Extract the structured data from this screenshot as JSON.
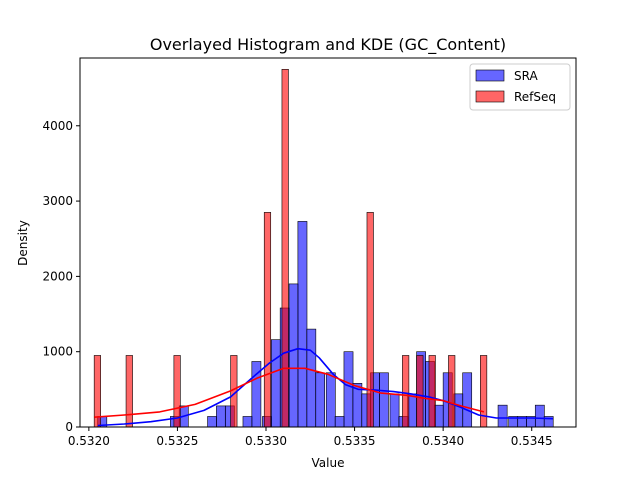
{
  "chart_data": {
    "type": "histogram",
    "title": "Overlayed Histogram and KDE (GC_Content)",
    "xlabel": "Value",
    "ylabel": "Density",
    "xlim": [
      0.53195,
      0.53475
    ],
    "ylim": [
      0,
      4900
    ],
    "xticks": [
      {
        "value": 0.532,
        "label": "0.5320"
      },
      {
        "value": 0.5325,
        "label": "0.5325"
      },
      {
        "value": 0.533,
        "label": "0.5330"
      },
      {
        "value": 0.5335,
        "label": "0.5335"
      },
      {
        "value": 0.534,
        "label": "0.5340"
      },
      {
        "value": 0.5345,
        "label": "0.5345"
      }
    ],
    "yticks": [
      {
        "value": 0,
        "label": "0"
      },
      {
        "value": 1000,
        "label": "1000"
      },
      {
        "value": 2000,
        "label": "2000"
      },
      {
        "value": 3000,
        "label": "3000"
      },
      {
        "value": 4000,
        "label": "4000"
      }
    ],
    "legend": {
      "placement": "top-right"
    },
    "series": [
      {
        "name": "SRA",
        "color": "#0000ff",
        "bar_fill": "rgba(0,0,255,0.6)",
        "bin_width": 5.14e-05,
        "bins": [
          {
            "x0": 0.53205,
            "h": 140
          },
          {
            "x0": 0.53246,
            "h": 140
          },
          {
            "x0": 0.53251,
            "h": 280
          },
          {
            "x0": 0.53267,
            "h": 140
          },
          {
            "x0": 0.53272,
            "h": 280
          },
          {
            "x0": 0.53277,
            "h": 280
          },
          {
            "x0": 0.53287,
            "h": 140
          },
          {
            "x0": 0.53292,
            "h": 870
          },
          {
            "x0": 0.53298,
            "h": 140
          },
          {
            "x0": 0.53303,
            "h": 1160
          },
          {
            "x0": 0.53308,
            "h": 1580
          },
          {
            "x0": 0.53313,
            "h": 1900
          },
          {
            "x0": 0.53318,
            "h": 2730
          },
          {
            "x0": 0.53323,
            "h": 1300
          },
          {
            "x0": 0.53328,
            "h": 720
          },
          {
            "x0": 0.53334,
            "h": 720
          },
          {
            "x0": 0.53339,
            "h": 140
          },
          {
            "x0": 0.53344,
            "h": 1000
          },
          {
            "x0": 0.53349,
            "h": 580
          },
          {
            "x0": 0.53354,
            "h": 440
          },
          {
            "x0": 0.53359,
            "h": 720
          },
          {
            "x0": 0.53364,
            "h": 720
          },
          {
            "x0": 0.5337,
            "h": 440
          },
          {
            "x0": 0.53375,
            "h": 140
          },
          {
            "x0": 0.5338,
            "h": 440
          },
          {
            "x0": 0.53385,
            "h": 1000
          },
          {
            "x0": 0.5339,
            "h": 870
          },
          {
            "x0": 0.53395,
            "h": 290
          },
          {
            "x0": 0.534,
            "h": 720
          },
          {
            "x0": 0.53406,
            "h": 440
          },
          {
            "x0": 0.53411,
            "h": 720
          },
          {
            "x0": 0.53431,
            "h": 290
          },
          {
            "x0": 0.53437,
            "h": 140
          },
          {
            "x0": 0.53442,
            "h": 140
          },
          {
            "x0": 0.53447,
            "h": 140
          },
          {
            "x0": 0.53452,
            "h": 290
          },
          {
            "x0": 0.53457,
            "h": 140
          }
        ],
        "kde": {
          "x": [
            0.53205,
            0.5322,
            0.53235,
            0.5325,
            0.53265,
            0.5328,
            0.53292,
            0.53302,
            0.5331,
            0.53318,
            0.53325,
            0.5333,
            0.53338,
            0.53345,
            0.53352,
            0.53362,
            0.53372,
            0.53382,
            0.53392,
            0.534,
            0.5341,
            0.5342,
            0.5343,
            0.5344,
            0.5345,
            0.53462
          ],
          "y": [
            20,
            40,
            70,
            120,
            220,
            400,
            650,
            850,
            980,
            1040,
            1020,
            920,
            700,
            560,
            500,
            490,
            470,
            440,
            400,
            350,
            260,
            160,
            120,
            120,
            120,
            110
          ]
        }
      },
      {
        "name": "RefSeq",
        "color": "#ff0000",
        "bar_fill": "rgba(255,0,0,0.6)",
        "bin_width": 3.67e-05,
        "bins": [
          {
            "x0": 0.53203,
            "h": 950
          },
          {
            "x0": 0.53221,
            "h": 950
          },
          {
            "x0": 0.53248,
            "h": 950
          },
          {
            "x0": 0.5328,
            "h": 950
          },
          {
            "x0": 0.53299,
            "h": 2850
          },
          {
            "x0": 0.53309,
            "h": 4750
          },
          {
            "x0": 0.53357,
            "h": 2850
          },
          {
            "x0": 0.53377,
            "h": 950
          },
          {
            "x0": 0.53385,
            "h": 950
          },
          {
            "x0": 0.53392,
            "h": 950
          },
          {
            "x0": 0.53403,
            "h": 950
          },
          {
            "x0": 0.53421,
            "h": 950
          }
        ],
        "kde": {
          "x": [
            0.53203,
            0.5322,
            0.5324,
            0.5326,
            0.5328,
            0.53295,
            0.5331,
            0.53322,
            0.53335,
            0.5335,
            0.53365,
            0.5338,
            0.5339,
            0.534,
            0.5341,
            0.53423
          ],
          "y": [
            130,
            160,
            200,
            300,
            480,
            650,
            780,
            780,
            700,
            550,
            450,
            420,
            380,
            350,
            280,
            200
          ]
        }
      }
    ]
  }
}
